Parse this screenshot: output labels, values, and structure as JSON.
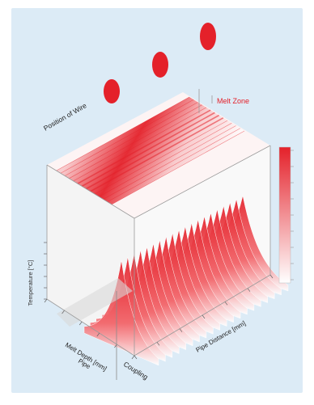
{
  "panel": {
    "background": "#dcebf6",
    "accent": "#e4212a",
    "accent_dark": "#b8131c",
    "face_color": "#f2f2f2"
  },
  "chart_data": {
    "type": "surface-3d",
    "title": "",
    "labels": {
      "position_of_wire": "Position of Wire",
      "melt_zone": "Melt Zone",
      "ylabel": "Temperature [°C]",
      "xlabel": "Melt Depth [mm]",
      "zlabel": "Pipe Distance [mm]",
      "pipe": "Pipe",
      "coupling": "Coupling"
    },
    "colorbar": {
      "min": 0,
      "max": 1,
      "tick_count": 9
    },
    "wire_markers": 3,
    "y_ticks": 6,
    "x_ticks": 6,
    "z_ticks": 7
  }
}
